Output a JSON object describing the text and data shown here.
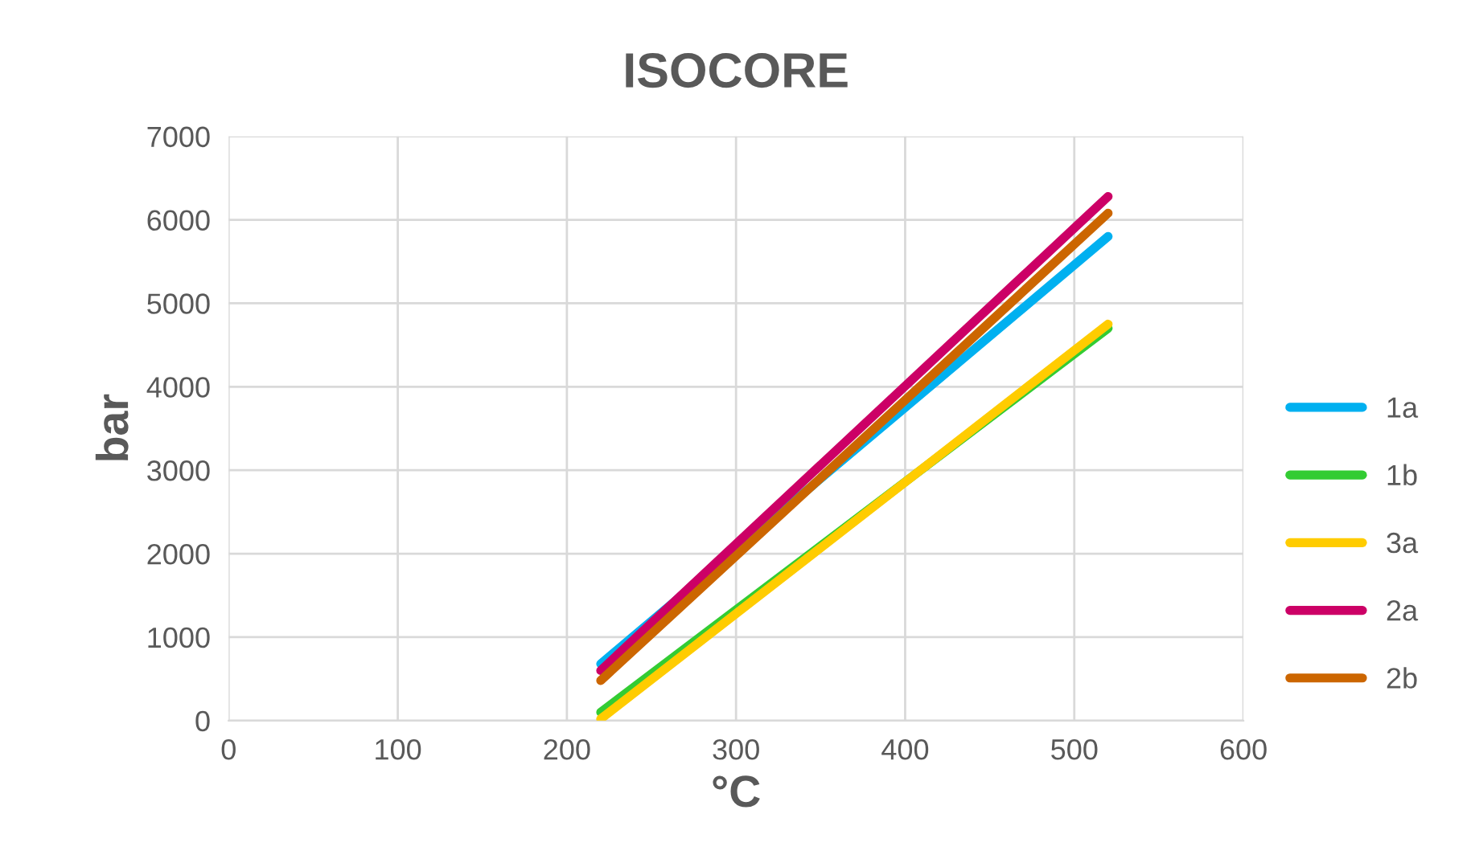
{
  "chart_data": {
    "type": "line",
    "title": "ISOCORE",
    "xlabel": "°C",
    "ylabel": "bar",
    "x": [
      220,
      520
    ],
    "series": [
      {
        "name": "1a",
        "color": "#00b0f0",
        "values": [
          680,
          5800
        ]
      },
      {
        "name": "1b",
        "color": "#33cc33",
        "values": [
          100,
          4700
        ]
      },
      {
        "name": "3a",
        "color": "#ffcc00",
        "values": [
          20,
          4750
        ]
      },
      {
        "name": "2a",
        "color": "#cc0066",
        "values": [
          600,
          6280
        ]
      },
      {
        "name": "2b",
        "color": "#cc6600",
        "values": [
          480,
          6080
        ]
      }
    ],
    "xlim": [
      0,
      600
    ],
    "xticks": [
      0,
      100,
      200,
      300,
      400,
      500,
      600
    ],
    "ylim": [
      0,
      7000
    ],
    "yticks": [
      0,
      1000,
      2000,
      3000,
      4000,
      5000,
      6000,
      7000
    ],
    "grid": true,
    "legend": "right",
    "marker": "none",
    "line_style": "solid"
  }
}
